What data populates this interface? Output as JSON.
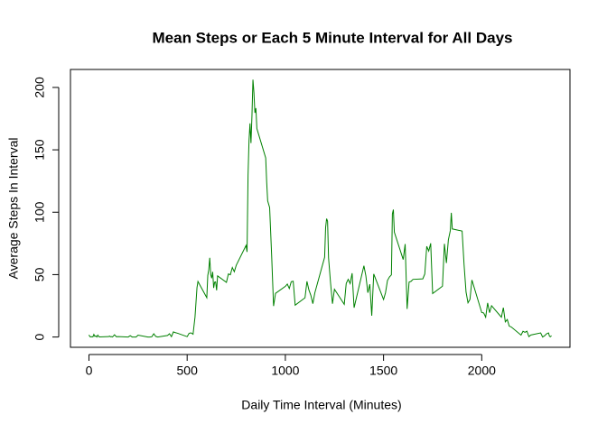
{
  "chart_data": {
    "type": "line",
    "title": "Mean Steps or Each 5 Minute Interval for All Days",
    "x_label": "Daily Time Interval (Minutes)",
    "y_label": "Average Steps In Interval",
    "color": "#008000",
    "x": [
      0,
      5,
      10,
      15,
      20,
      25,
      30,
      35,
      40,
      45,
      50,
      55,
      100,
      105,
      110,
      115,
      120,
      130,
      140,
      150,
      200,
      210,
      220,
      230,
      240,
      250,
      300,
      310,
      320,
      330,
      340,
      350,
      400,
      410,
      420,
      430,
      440,
      450,
      500,
      505,
      510,
      520,
      530,
      540,
      550,
      555,
      600,
      605,
      610,
      615,
      620,
      625,
      630,
      635,
      640,
      645,
      650,
      655,
      700,
      710,
      720,
      730,
      740,
      750,
      800,
      805,
      810,
      815,
      820,
      825,
      830,
      835,
      840,
      845,
      850,
      855,
      900,
      905,
      910,
      920,
      930,
      940,
      950,
      1000,
      1010,
      1020,
      1030,
      1040,
      1050,
      1100,
      1110,
      1120,
      1130,
      1140,
      1150,
      1200,
      1205,
      1210,
      1215,
      1220,
      1230,
      1240,
      1250,
      1300,
      1310,
      1320,
      1330,
      1340,
      1350,
      1400,
      1410,
      1420,
      1430,
      1440,
      1450,
      1500,
      1510,
      1520,
      1530,
      1540,
      1545,
      1550,
      1555,
      1600,
      1610,
      1620,
      1630,
      1640,
      1650,
      1700,
      1710,
      1720,
      1730,
      1740,
      1750,
      1800,
      1810,
      1820,
      1830,
      1840,
      1845,
      1850,
      1900,
      1910,
      1920,
      1930,
      1940,
      1950,
      2000,
      2010,
      2020,
      2030,
      2040,
      2050,
      2100,
      2110,
      2120,
      2130,
      2140,
      2150,
      2200,
      2210,
      2220,
      2230,
      2240,
      2250,
      2300,
      2310,
      2320,
      2330,
      2340,
      2345,
      2350,
      2355
    ],
    "values": [
      1.7,
      0.3,
      0.1,
      0.2,
      0.1,
      2.1,
      0.5,
      0.9,
      0,
      1.5,
      0.3,
      0.1,
      0.3,
      0.7,
      0.2,
      0.3,
      0,
      1.8,
      0.2,
      0.3,
      0,
      1.1,
      0,
      0,
      0,
      1.5,
      0,
      0,
      0.2,
      2.6,
      0.5,
      0,
      1.2,
      2.6,
      0.3,
      4.1,
      3.5,
      3.1,
      0.3,
      1.6,
      3,
      3.3,
      2.2,
      16,
      39.5,
      44.5,
      31.5,
      49.3,
      53.8,
      63.5,
      50,
      47.1,
      52.2,
      39.3,
      44,
      44.2,
      37.4,
      49,
      43.8,
      50.5,
      49.9,
      55.7,
      52.3,
      57.5,
      73.4,
      68.2,
      129.4,
      157.5,
      171.2,
      155.4,
      177.3,
      206.2,
      195.9,
      179.6,
      183.4,
      167,
      143.5,
      124,
      109.1,
      103.7,
      66.2,
      24.8,
      35,
      40.6,
      42.4,
      38.9,
      44.3,
      44.7,
      25.5,
      31.4,
      44.6,
      37.7,
      33.3,
      26.7,
      35.3,
      63.9,
      87.7,
      94.8,
      92.8,
      63.4,
      43.7,
      26.7,
      38.3,
      26.2,
      43,
      46.2,
      42.8,
      51.1,
      23.5,
      57.1,
      49,
      35.5,
      42.3,
      17.1,
      50.5,
      30,
      35.5,
      45.3,
      48.1,
      49.8,
      98.7,
      102.1,
      84,
      62.1,
      74.5,
      22.5,
      44,
      44.6,
      46.2,
      46.6,
      50.5,
      72.7,
      68.9,
      75.1,
      34.8,
      40.7,
      74.7,
      59.3,
      77.8,
      85.3,
      99.5,
      86.6,
      84.9,
      58,
      36.1,
      27.4,
      30.2,
      45.7,
      19.6,
      19.3,
      15.9,
      27.3,
      19.5,
      25.1,
      15.9,
      23.5,
      12.1,
      14,
      8.7,
      8.1,
      1.5,
      4.6,
      3.7,
      4.7,
      0.3,
      1.6,
      3.3,
      0,
      1,
      2.6,
      3.3,
      0.6,
      0.2,
      1.1
    ],
    "xlim": [
      -94.2,
      2449.2
    ],
    "ylim": [
      -8.25,
      214.4
    ],
    "xticks": [
      0,
      500,
      1000,
      1500,
      2000
    ],
    "yticks": [
      0,
      50,
      100,
      150,
      200
    ]
  }
}
